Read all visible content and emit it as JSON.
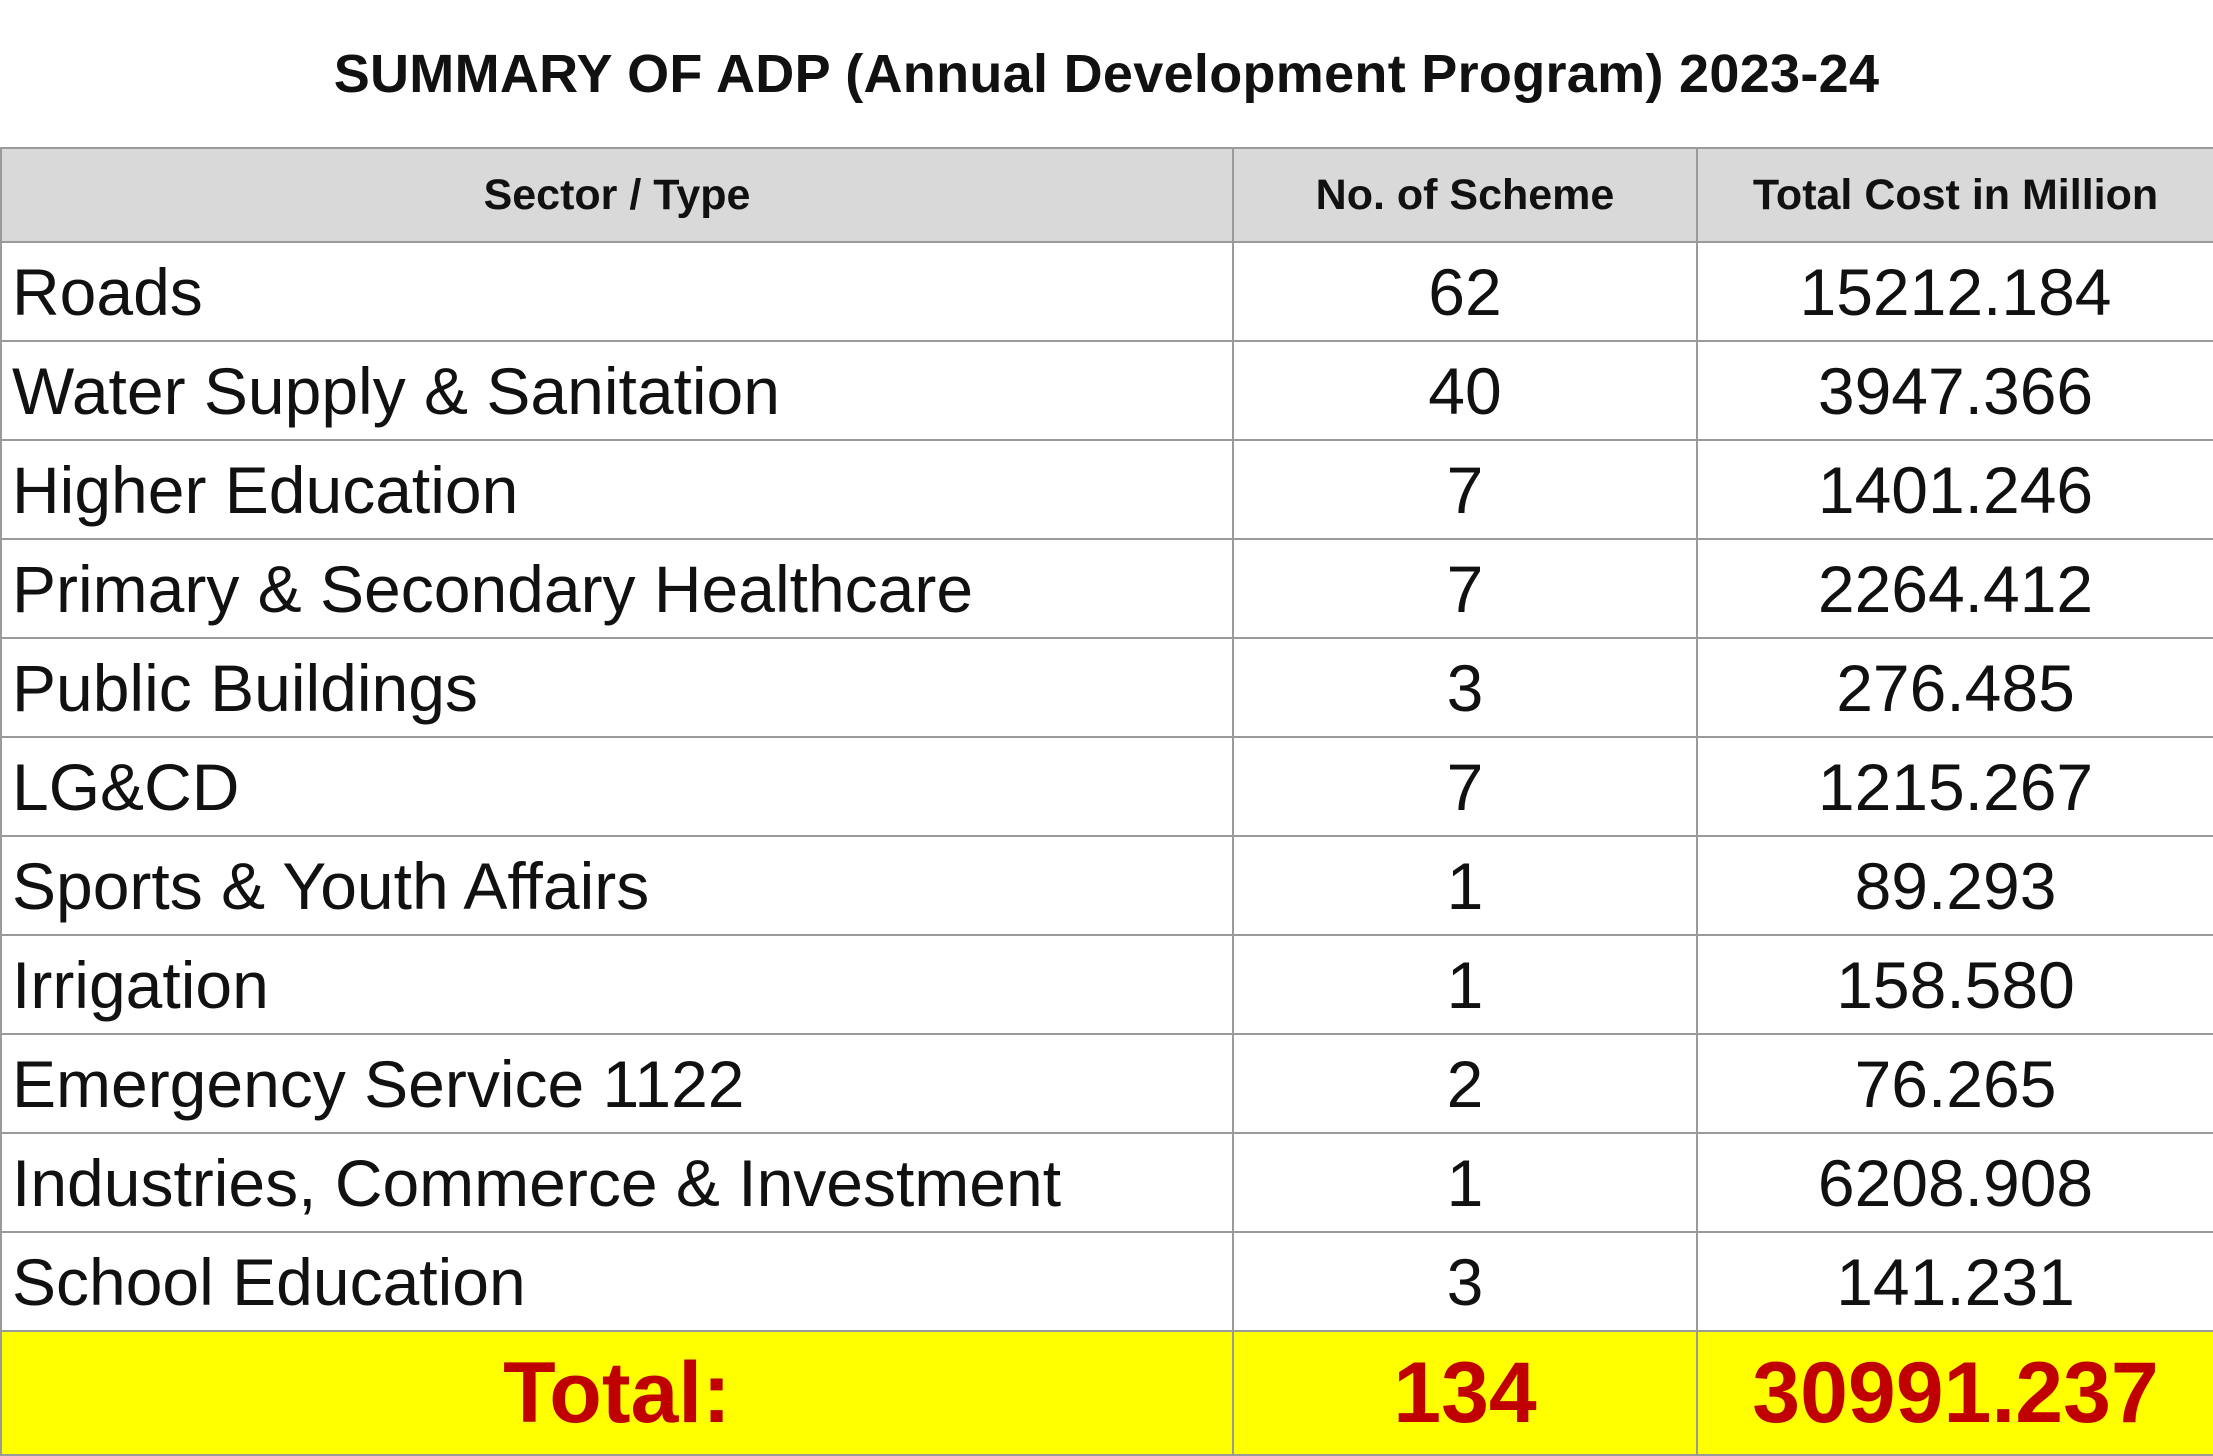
{
  "title": "SUMMARY OF ADP (Annual Development Program) 2023-24",
  "table": {
    "headers": {
      "sector": "Sector / Type",
      "schemes": "No. of Scheme",
      "cost": "Total Cost in Million"
    },
    "rows": [
      {
        "sector": "Roads",
        "schemes": "62",
        "cost": "15212.184"
      },
      {
        "sector": "Water Supply & Sanitation",
        "schemes": "40",
        "cost": "3947.366"
      },
      {
        "sector": "Higher Education",
        "schemes": "7",
        "cost": "1401.246"
      },
      {
        "sector": "Primary & Secondary Healthcare",
        "schemes": "7",
        "cost": "2264.412"
      },
      {
        "sector": "Public Buildings",
        "schemes": "3",
        "cost": "276.485"
      },
      {
        "sector": "LG&CD",
        "schemes": "7",
        "cost": "1215.267"
      },
      {
        "sector": "Sports & Youth Affairs",
        "schemes": "1",
        "cost": "89.293"
      },
      {
        "sector": "Irrigation",
        "schemes": "1",
        "cost": "158.580"
      },
      {
        "sector": "Emergency Service 1122",
        "schemes": "2",
        "cost": "76.265"
      },
      {
        "sector": "Industries, Commerce & Investment",
        "schemes": "1",
        "cost": "6208.908"
      },
      {
        "sector": "School Education",
        "schemes": "3",
        "cost": "141.231"
      }
    ],
    "total": {
      "label": "Total:",
      "schemes": "134",
      "cost": "30991.237"
    }
  },
  "colors": {
    "header_bg": "#d9d9d9",
    "total_bg": "#ffff00",
    "total_text": "#c00000",
    "grid": "#9a9a9a"
  }
}
